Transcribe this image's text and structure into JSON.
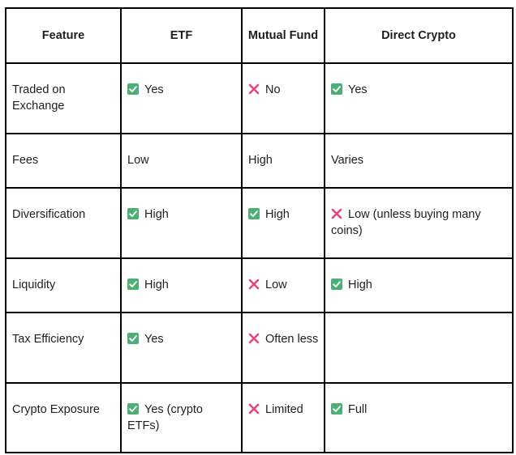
{
  "headers": [
    "Feature",
    "ETF",
    "Mutual Fund",
    "Direct Crypto"
  ],
  "rows": [
    {
      "feature": "Traded on Exchange",
      "etf": "Yes",
      "mutual": "No",
      "crypto": "Yes"
    },
    {
      "feature": "Fees",
      "etf": "Low",
      "mutual": "High",
      "crypto": "Varies"
    },
    {
      "feature": "Diversification",
      "etf": "High",
      "mutual": "High",
      "crypto": "Low (unless buying many coins)"
    },
    {
      "feature": "Liquidity",
      "etf": "High",
      "mutual": "Low",
      "crypto": "High"
    },
    {
      "feature": "Tax Efficiency",
      "etf": "Yes",
      "mutual": "Often less",
      "crypto": ""
    },
    {
      "feature": "Crypto Exposure",
      "etf": "Yes (crypto ETFs)",
      "mutual": "Limited",
      "crypto": "Full"
    }
  ],
  "icons": {
    "check": {
      "name": "check-mark-icon",
      "color": "#4caf76"
    },
    "cross": {
      "name": "cross-mark-icon",
      "color": "#e8457a"
    }
  }
}
